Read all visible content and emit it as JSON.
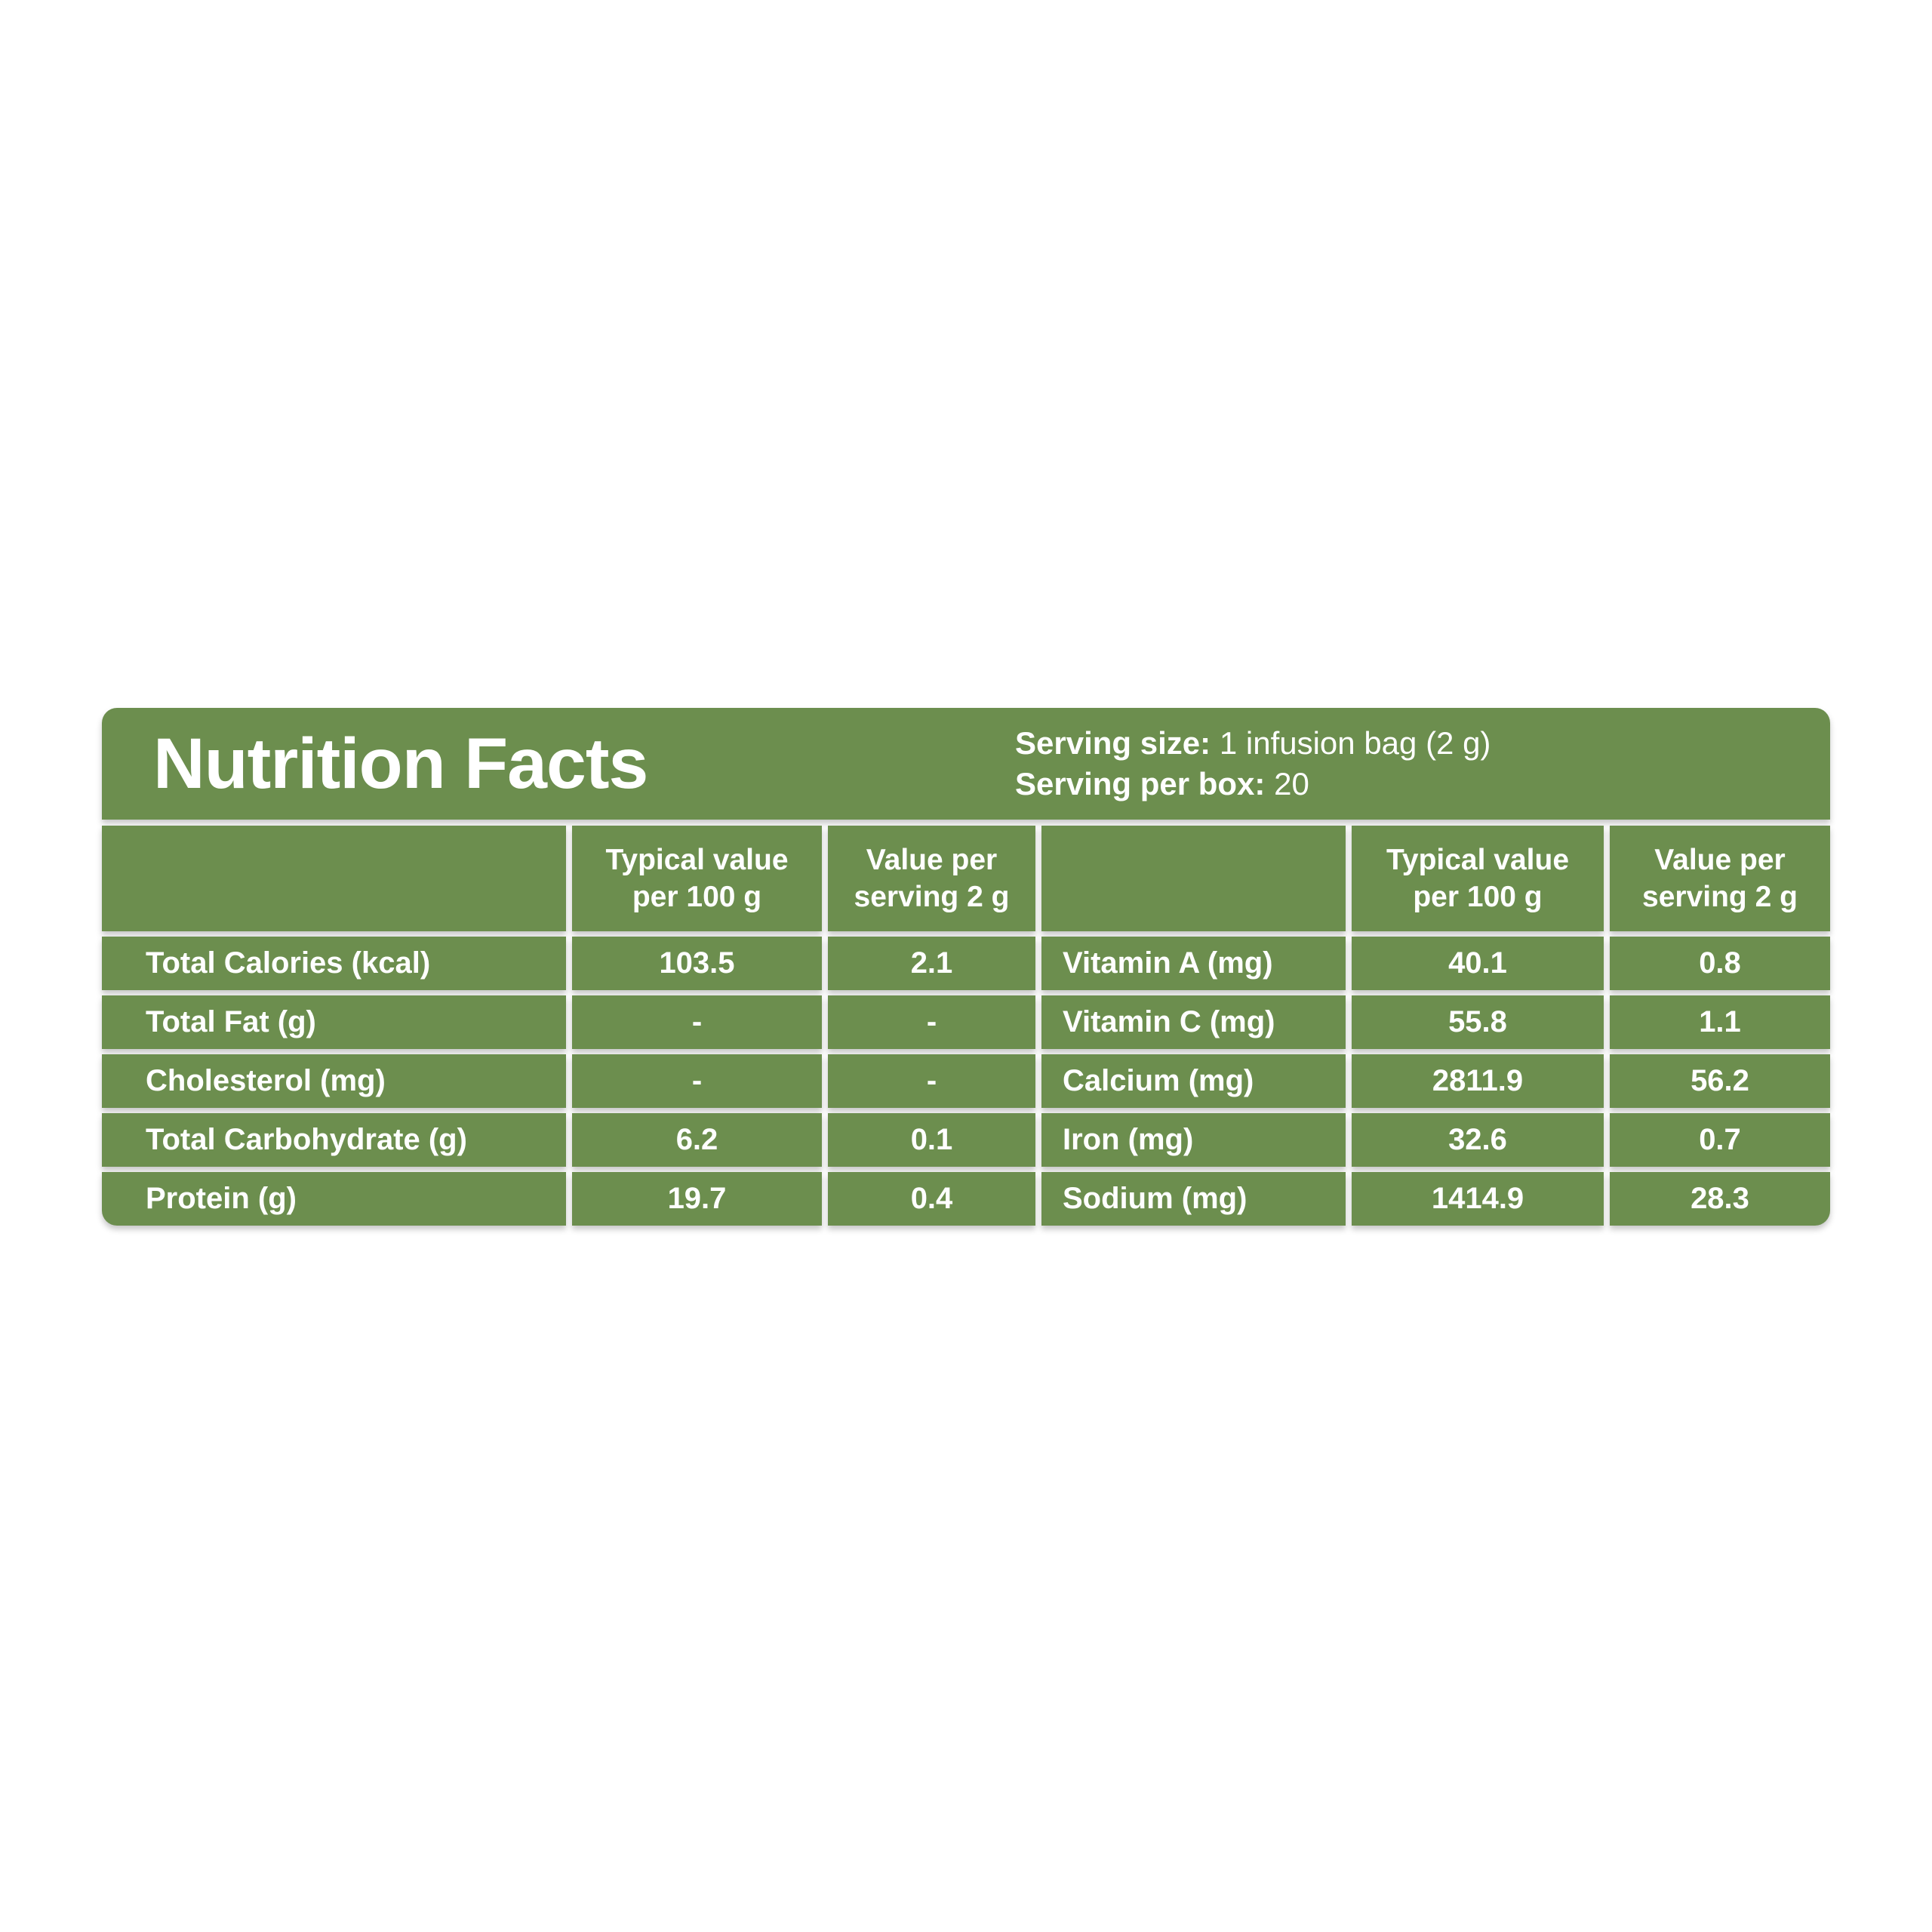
{
  "colors": {
    "panel_green": "#6c8e4e",
    "text": "#ffffff",
    "page_background": "#ffffff"
  },
  "header": {
    "title": "Nutrition Facts",
    "serving_size_label": "Serving size:",
    "serving_size_value": "1 infusion bag (2 g)",
    "serving_per_box_label": "Serving per box:",
    "serving_per_box_value": "20"
  },
  "table": {
    "column_headers": {
      "typical_line1": "Typical value",
      "typical_line2": "per 100 g",
      "per_serving_line1": "Value per",
      "per_serving_line2": "serving 2 g"
    },
    "left_rows": [
      {
        "label": "Total Calories (kcal)",
        "per100": "103.5",
        "perServing": "2.1"
      },
      {
        "label": "Total Fat (g)",
        "per100": "-",
        "perServing": "-"
      },
      {
        "label": "Cholesterol (mg)",
        "per100": "-",
        "perServing": "-"
      },
      {
        "label": "Total Carbohydrate (g)",
        "per100": "6.2",
        "perServing": "0.1"
      },
      {
        "label": "Protein (g)",
        "per100": "19.7",
        "perServing": "0.4"
      }
    ],
    "right_rows": [
      {
        "label": "Vitamin A (mg)",
        "per100": "40.1",
        "perServing": "0.8"
      },
      {
        "label": "Vitamin C (mg)",
        "per100": "55.8",
        "perServing": "1.1"
      },
      {
        "label": "Calcium (mg)",
        "per100": "2811.9",
        "perServing": "56.2"
      },
      {
        "label": "Iron (mg)",
        "per100": "32.6",
        "perServing": "0.7"
      },
      {
        "label": "Sodium (mg)",
        "per100": "1414.9",
        "perServing": "28.3"
      }
    ]
  }
}
